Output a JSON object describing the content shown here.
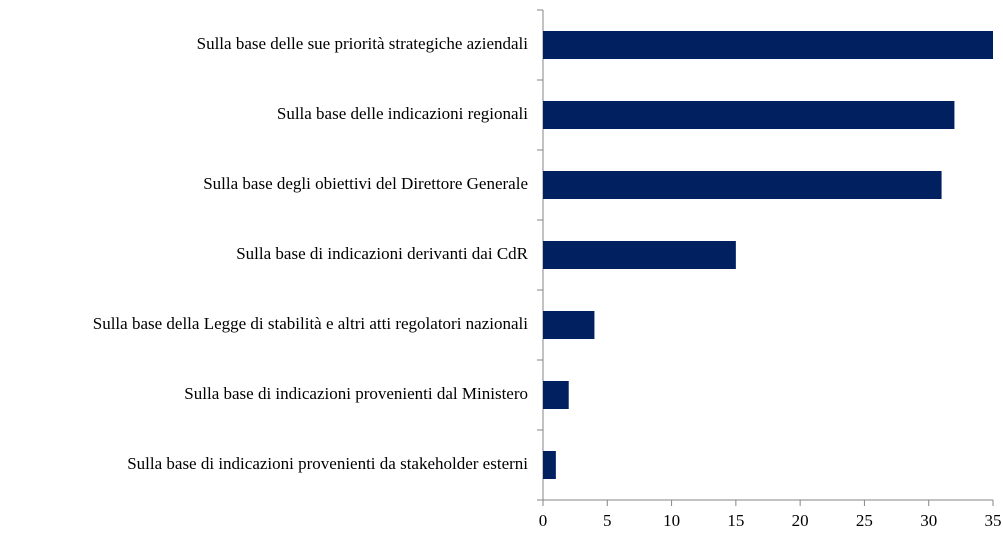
{
  "chart_data": {
    "type": "barh",
    "categories": [
      "Sulla base delle sue priorità strategiche aziendali",
      "Sulla base delle indicazioni regionali",
      "Sulla base degli obiettivi del Direttore Generale",
      "Sulla base di indicazioni derivanti dai CdR",
      "Sulla base della Legge di stabilità e altri atti regolatori nazionali",
      "Sulla base di indicazioni provenienti dal Ministero",
      "Sulla base di indicazioni provenienti da stakeholder esterni"
    ],
    "values": [
      35,
      32,
      31,
      15,
      4,
      2,
      1
    ],
    "color": "#002060",
    "xlim": [
      0,
      35
    ],
    "xticks": [
      0,
      5,
      10,
      15,
      20,
      25,
      30,
      35
    ],
    "grid": false
  }
}
